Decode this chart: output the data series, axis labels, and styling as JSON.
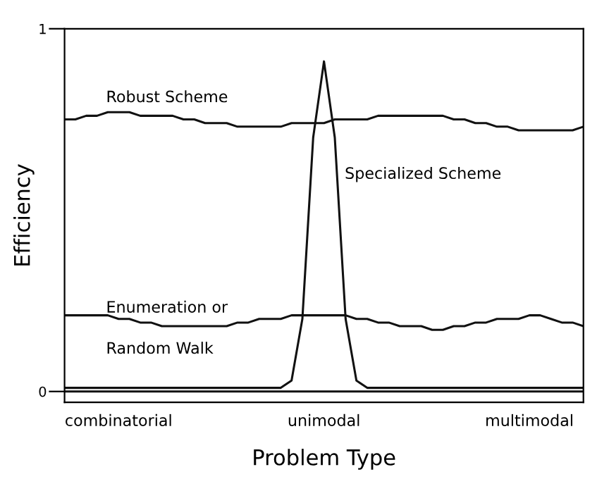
{
  "chart_data": {
    "type": "line",
    "xlabel": "Problem Type",
    "ylabel": "Efficiency",
    "ylim": [
      -0.03,
      1
    ],
    "yticks": [
      0,
      1
    ],
    "categories": [
      null,
      null,
      null,
      null,
      null,
      "combinatorial",
      null,
      null,
      null,
      null,
      null,
      null,
      null,
      null,
      null,
      null,
      null,
      null,
      null,
      null,
      null,
      null,
      null,
      null,
      "unimodal",
      null,
      null,
      null,
      null,
      null,
      null,
      null,
      null,
      null,
      null,
      null,
      null,
      null,
      null,
      null,
      null,
      null,
      null,
      "multimodal",
      null,
      null,
      null,
      null,
      null
    ],
    "series": [
      {
        "color": "#111111",
        "values": [
          0.75,
          0.75,
          0.76,
          0.76,
          0.77,
          0.77,
          0.77,
          0.76,
          0.76,
          0.76,
          0.76,
          0.75,
          0.75,
          0.74,
          0.74,
          0.74,
          0.73,
          0.73,
          0.73,
          0.73,
          0.73,
          0.74,
          0.74,
          0.74,
          0.74,
          0.75,
          0.75,
          0.75,
          0.75,
          0.76,
          0.76,
          0.76,
          0.76,
          0.76,
          0.76,
          0.76,
          0.75,
          0.75,
          0.74,
          0.74,
          0.73,
          0.73,
          0.72,
          0.72,
          0.72,
          0.72,
          0.72,
          0.72,
          0.73
        ]
      },
      {
        "color": "#111111",
        "values": [
          0.01,
          0.01,
          0.01,
          0.01,
          0.01,
          0.01,
          0.01,
          0.01,
          0.01,
          0.01,
          0.01,
          0.01,
          0.01,
          0.01,
          0.01,
          0.01,
          0.01,
          0.01,
          0.01,
          0.01,
          0.01,
          0.03,
          0.2,
          0.7,
          0.91,
          0.7,
          0.2,
          0.03,
          0.01,
          0.01,
          0.01,
          0.01,
          0.01,
          0.01,
          0.01,
          0.01,
          0.01,
          0.01,
          0.01,
          0.01,
          0.01,
          0.01,
          0.01,
          0.01,
          0.01,
          0.01,
          0.01,
          0.01,
          0.01
        ]
      },
      {
        "color": "#111111",
        "values": [
          0.21,
          0.21,
          0.21,
          0.21,
          0.21,
          0.2,
          0.2,
          0.19,
          0.19,
          0.18,
          0.18,
          0.18,
          0.18,
          0.18,
          0.18,
          0.18,
          0.19,
          0.19,
          0.2,
          0.2,
          0.2,
          0.21,
          0.21,
          0.21,
          0.21,
          0.21,
          0.21,
          0.2,
          0.2,
          0.19,
          0.19,
          0.18,
          0.18,
          0.18,
          0.17,
          0.17,
          0.18,
          0.18,
          0.19,
          0.19,
          0.2,
          0.2,
          0.2,
          0.21,
          0.21,
          0.2,
          0.19,
          0.19,
          0.18
        ]
      }
    ],
    "ref_lines": [
      {
        "axis": "y",
        "value": 0,
        "color": "#111111"
      }
    ],
    "annotations": [
      "Robust Scheme",
      "Specialized Scheme",
      "Enumeration or",
      "Random Walk"
    ],
    "grid": false,
    "legend": false,
    "marker": "none",
    "line_style": "solid"
  }
}
